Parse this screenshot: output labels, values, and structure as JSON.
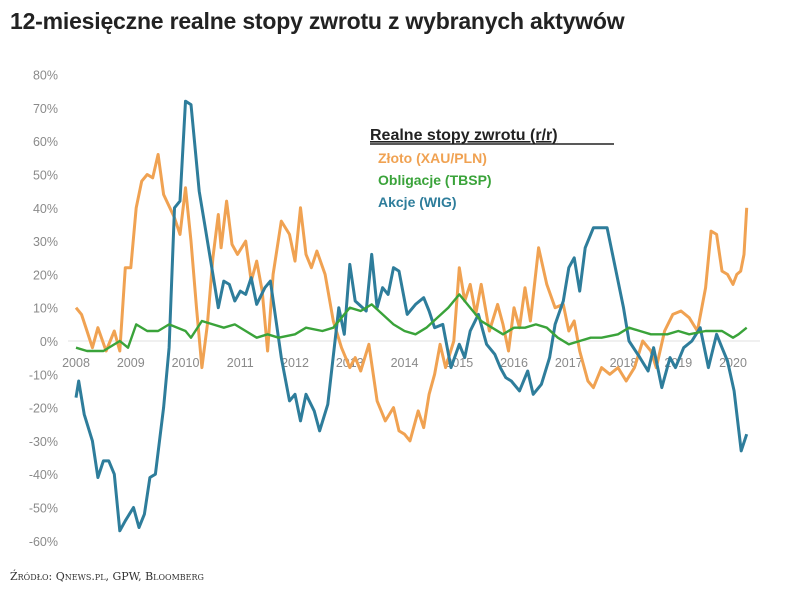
{
  "chart_data": {
    "type": "line",
    "title": "12-miesięczne realne stopy zwrotu z wybranych aktywów",
    "source": "Źródło: Qnews.pl, GPW, Bloomberg",
    "legend_title": "Realne stopy zwrotu (r/r)",
    "legend_placement": "top-center",
    "ylim": [
      -60,
      80
    ],
    "y_ticks": [
      "80%",
      "70%",
      "60%",
      "50%",
      "40%",
      "30%",
      "20%",
      "10%",
      "0%",
      "-10%",
      "-20%",
      "-30%",
      "-40%",
      "-50%",
      "-60%"
    ],
    "y_tick_values": [
      80,
      70,
      60,
      50,
      40,
      30,
      20,
      10,
      0,
      -10,
      -20,
      -30,
      -40,
      -50,
      -60
    ],
    "x_ticks": [
      "2008",
      "2009",
      "2010",
      "2011",
      "2012",
      "2013",
      "2014",
      "2015",
      "2016",
      "2017",
      "2018",
      "2019",
      "2020"
    ],
    "xlim": [
      2008,
      2020.25
    ],
    "colors": {
      "gold": "#f0a252",
      "bonds": "#3aa33a",
      "stocks": "#2e7d9b"
    },
    "series": [
      {
        "name": "Złoto (XAU/PLN)",
        "key": "gold",
        "points": [
          [
            2008,
            10
          ],
          [
            2008.1,
            8
          ],
          [
            2008.2,
            3
          ],
          [
            2008.3,
            -2
          ],
          [
            2008.4,
            4
          ],
          [
            2008.55,
            -3
          ],
          [
            2008.7,
            3
          ],
          [
            2008.8,
            -3
          ],
          [
            2008.9,
            22
          ],
          [
            2009,
            22
          ],
          [
            2009.1,
            40
          ],
          [
            2009.2,
            48
          ],
          [
            2009.3,
            50
          ],
          [
            2009.4,
            49
          ],
          [
            2009.5,
            56
          ],
          [
            2009.6,
            44
          ],
          [
            2009.8,
            37
          ],
          [
            2009.9,
            32
          ],
          [
            2010,
            46
          ],
          [
            2010.1,
            30
          ],
          [
            2010.2,
            10
          ],
          [
            2010.3,
            -8
          ],
          [
            2010.4,
            5
          ],
          [
            2010.5,
            25
          ],
          [
            2010.6,
            38
          ],
          [
            2010.65,
            28
          ],
          [
            2010.75,
            42
          ],
          [
            2010.85,
            29
          ],
          [
            2010.95,
            26
          ],
          [
            2011.1,
            30
          ],
          [
            2011.2,
            18
          ],
          [
            2011.3,
            24
          ],
          [
            2011.4,
            15
          ],
          [
            2011.5,
            -3
          ],
          [
            2011.6,
            20
          ],
          [
            2011.75,
            36
          ],
          [
            2011.9,
            32
          ],
          [
            2012,
            24
          ],
          [
            2012.1,
            40
          ],
          [
            2012.2,
            26
          ],
          [
            2012.3,
            22
          ],
          [
            2012.4,
            27
          ],
          [
            2012.55,
            20
          ],
          [
            2012.7,
            6
          ],
          [
            2012.85,
            -2
          ],
          [
            2013,
            -8
          ],
          [
            2013.1,
            -5
          ],
          [
            2013.2,
            -9
          ],
          [
            2013.35,
            -1
          ],
          [
            2013.5,
            -18
          ],
          [
            2013.65,
            -24
          ],
          [
            2013.8,
            -20
          ],
          [
            2013.9,
            -27
          ],
          [
            2014,
            -28
          ],
          [
            2014.1,
            -30
          ],
          [
            2014.25,
            -21
          ],
          [
            2014.35,
            -26
          ],
          [
            2014.45,
            -16
          ],
          [
            2014.55,
            -10
          ],
          [
            2014.65,
            -1
          ],
          [
            2014.75,
            -8
          ],
          [
            2014.9,
            0
          ],
          [
            2015,
            22
          ],
          [
            2015.1,
            12
          ],
          [
            2015.2,
            17
          ],
          [
            2015.3,
            8
          ],
          [
            2015.4,
            17
          ],
          [
            2015.55,
            3
          ],
          [
            2015.7,
            11
          ],
          [
            2015.8,
            5
          ],
          [
            2015.9,
            -3
          ],
          [
            2016,
            10
          ],
          [
            2016.1,
            4
          ],
          [
            2016.2,
            16
          ],
          [
            2016.3,
            6
          ],
          [
            2016.45,
            28
          ],
          [
            2016.6,
            17
          ],
          [
            2016.75,
            10
          ],
          [
            2016.9,
            11
          ],
          [
            2017,
            3
          ],
          [
            2017.1,
            6
          ],
          [
            2017.2,
            -3
          ],
          [
            2017.35,
            -12
          ],
          [
            2017.45,
            -14
          ],
          [
            2017.6,
            -8
          ],
          [
            2017.75,
            -10
          ],
          [
            2017.9,
            -8
          ],
          [
            2018.05,
            -12
          ],
          [
            2018.2,
            -8
          ],
          [
            2018.35,
            0
          ],
          [
            2018.5,
            -3
          ],
          [
            2018.6,
            -8
          ],
          [
            2018.75,
            3
          ],
          [
            2018.9,
            8
          ],
          [
            2019.05,
            9
          ],
          [
            2019.2,
            7
          ],
          [
            2019.35,
            3
          ],
          [
            2019.5,
            16
          ],
          [
            2019.6,
            33
          ],
          [
            2019.7,
            32
          ],
          [
            2019.8,
            21
          ],
          [
            2019.9,
            20
          ],
          [
            2020,
            17
          ],
          [
            2020.07,
            20
          ],
          [
            2020.14,
            21
          ],
          [
            2020.2,
            26
          ],
          [
            2020.25,
            40
          ]
        ]
      },
      {
        "name": "Obligacje (TBSP)",
        "key": "bonds",
        "points": [
          [
            2008,
            -2
          ],
          [
            2008.2,
            -3
          ],
          [
            2008.5,
            -3
          ],
          [
            2008.8,
            0
          ],
          [
            2008.95,
            -2
          ],
          [
            2009.1,
            5
          ],
          [
            2009.3,
            3
          ],
          [
            2009.5,
            3
          ],
          [
            2009.7,
            5
          ],
          [
            2010,
            3
          ],
          [
            2010.1,
            1
          ],
          [
            2010.3,
            6
          ],
          [
            2010.5,
            5
          ],
          [
            2010.7,
            4
          ],
          [
            2010.9,
            5
          ],
          [
            2011.1,
            3
          ],
          [
            2011.3,
            1
          ],
          [
            2011.5,
            2
          ],
          [
            2011.7,
            1
          ],
          [
            2012,
            2
          ],
          [
            2012.2,
            4
          ],
          [
            2012.5,
            3
          ],
          [
            2012.7,
            4
          ],
          [
            2013,
            10
          ],
          [
            2013.2,
            9
          ],
          [
            2013.4,
            11
          ],
          [
            2013.6,
            8
          ],
          [
            2013.8,
            5
          ],
          [
            2014,
            3
          ],
          [
            2014.2,
            2
          ],
          [
            2014.4,
            4
          ],
          [
            2014.6,
            7
          ],
          [
            2014.8,
            10
          ],
          [
            2015,
            14
          ],
          [
            2015.2,
            10
          ],
          [
            2015.4,
            6
          ],
          [
            2015.6,
            4
          ],
          [
            2015.8,
            2
          ],
          [
            2016,
            4
          ],
          [
            2016.2,
            4
          ],
          [
            2016.4,
            5
          ],
          [
            2016.6,
            4
          ],
          [
            2016.8,
            1
          ],
          [
            2017,
            -1
          ],
          [
            2017.2,
            0
          ],
          [
            2017.4,
            1
          ],
          [
            2017.6,
            1
          ],
          [
            2017.9,
            2
          ],
          [
            2018.1,
            4
          ],
          [
            2018.3,
            3
          ],
          [
            2018.5,
            2
          ],
          [
            2018.8,
            2
          ],
          [
            2019,
            3
          ],
          [
            2019.2,
            2
          ],
          [
            2019.5,
            3
          ],
          [
            2019.8,
            3
          ],
          [
            2020,
            1
          ],
          [
            2020.1,
            2
          ],
          [
            2020.25,
            4
          ]
        ]
      },
      {
        "name": "Akcje (WIG)",
        "key": "stocks",
        "points": [
          [
            2008,
            -17
          ],
          [
            2008.05,
            -12
          ],
          [
            2008.15,
            -22
          ],
          [
            2008.3,
            -30
          ],
          [
            2008.4,
            -41
          ],
          [
            2008.5,
            -36
          ],
          [
            2008.6,
            -36
          ],
          [
            2008.7,
            -40
          ],
          [
            2008.8,
            -57
          ],
          [
            2008.9,
            -54
          ],
          [
            2009.05,
            -50
          ],
          [
            2009.15,
            -56
          ],
          [
            2009.25,
            -52
          ],
          [
            2009.35,
            -41
          ],
          [
            2009.45,
            -40
          ],
          [
            2009.6,
            -20
          ],
          [
            2009.7,
            -2
          ],
          [
            2009.8,
            40
          ],
          [
            2009.9,
            42
          ],
          [
            2010,
            72
          ],
          [
            2010.1,
            71
          ],
          [
            2010.25,
            45
          ],
          [
            2010.35,
            35
          ],
          [
            2010.5,
            20
          ],
          [
            2010.6,
            10
          ],
          [
            2010.7,
            18
          ],
          [
            2010.8,
            17
          ],
          [
            2010.9,
            12
          ],
          [
            2011,
            15
          ],
          [
            2011.1,
            14
          ],
          [
            2011.2,
            19
          ],
          [
            2011.3,
            11
          ],
          [
            2011.45,
            16
          ],
          [
            2011.55,
            18
          ],
          [
            2011.75,
            -5
          ],
          [
            2011.9,
            -18
          ],
          [
            2012,
            -16
          ],
          [
            2012.1,
            -24
          ],
          [
            2012.2,
            -16
          ],
          [
            2012.35,
            -21
          ],
          [
            2012.45,
            -27
          ],
          [
            2012.6,
            -19
          ],
          [
            2012.8,
            10
          ],
          [
            2012.9,
            2
          ],
          [
            2013,
            23
          ],
          [
            2013.1,
            12
          ],
          [
            2013.3,
            9
          ],
          [
            2013.4,
            26
          ],
          [
            2013.5,
            10
          ],
          [
            2013.6,
            16
          ],
          [
            2013.7,
            14
          ],
          [
            2013.8,
            22
          ],
          [
            2013.9,
            21
          ],
          [
            2014.05,
            8
          ],
          [
            2014.2,
            11
          ],
          [
            2014.35,
            13
          ],
          [
            2014.45,
            9
          ],
          [
            2014.55,
            4
          ],
          [
            2014.7,
            5
          ],
          [
            2014.85,
            -8
          ],
          [
            2015,
            -1
          ],
          [
            2015.1,
            -5
          ],
          [
            2015.2,
            3
          ],
          [
            2015.35,
            8
          ],
          [
            2015.5,
            -1
          ],
          [
            2015.65,
            -4
          ],
          [
            2015.75,
            -8
          ],
          [
            2015.85,
            -11
          ],
          [
            2015.95,
            -12
          ],
          [
            2016.1,
            -15
          ],
          [
            2016.25,
            -9
          ],
          [
            2016.35,
            -16
          ],
          [
            2016.5,
            -13
          ],
          [
            2016.65,
            -5
          ],
          [
            2016.75,
            5
          ],
          [
            2016.9,
            12
          ],
          [
            2017,
            22
          ],
          [
            2017.1,
            25
          ],
          [
            2017.2,
            15
          ],
          [
            2017.3,
            28
          ],
          [
            2017.45,
            34
          ],
          [
            2017.7,
            34
          ],
          [
            2017.85,
            22
          ],
          [
            2018,
            10
          ],
          [
            2018.1,
            0
          ],
          [
            2018.3,
            -5
          ],
          [
            2018.45,
            -9
          ],
          [
            2018.55,
            -2
          ],
          [
            2018.7,
            -14
          ],
          [
            2018.85,
            -5
          ],
          [
            2018.95,
            -8
          ],
          [
            2019.1,
            -2
          ],
          [
            2019.25,
            0
          ],
          [
            2019.4,
            4
          ],
          [
            2019.55,
            -8
          ],
          [
            2019.7,
            2
          ],
          [
            2019.8,
            -2
          ],
          [
            2019.9,
            -6
          ],
          [
            2020.02,
            -15
          ],
          [
            2020.15,
            -33
          ],
          [
            2020.25,
            -28
          ]
        ]
      }
    ]
  }
}
